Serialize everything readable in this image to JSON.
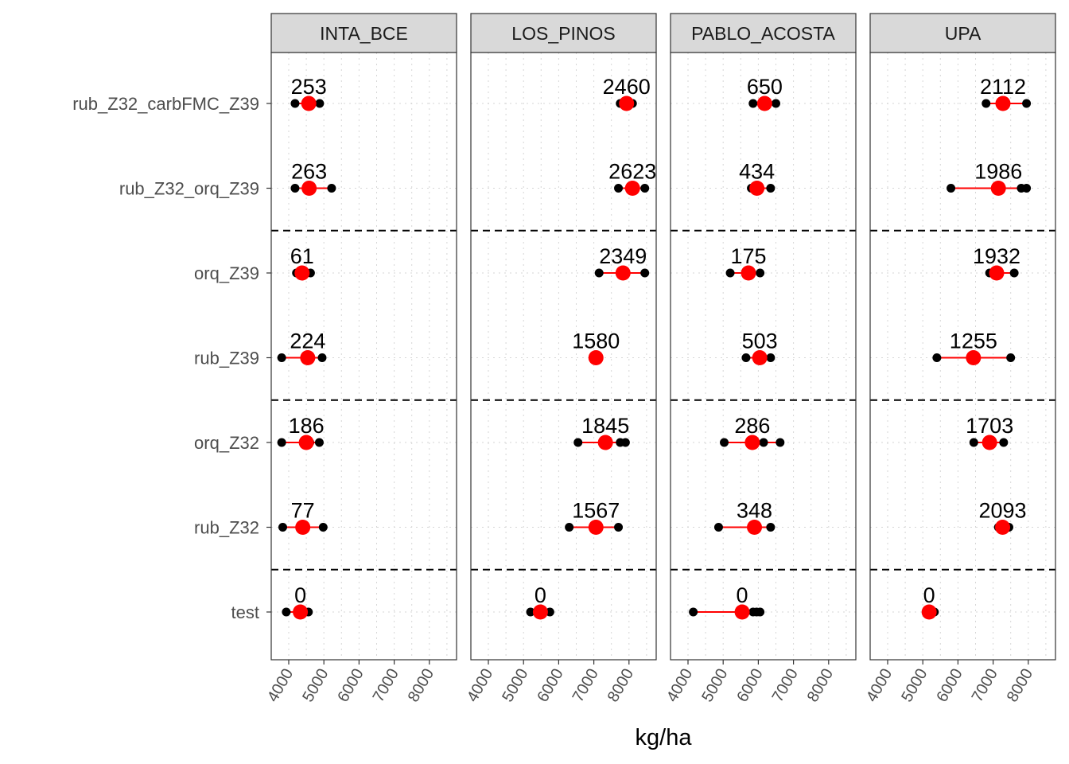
{
  "chart_data": {
    "type": "scatter",
    "xlabel": "kg/ha",
    "ylabel": "",
    "xlim": [
      3650,
      8800
    ],
    "x_ticks": [
      4000,
      5000,
      6000,
      7000,
      8000
    ],
    "x_tick_labels": [
      "4000",
      "5000",
      "6000",
      "7000",
      "8000"
    ],
    "categories": [
      "rub_Z32_carbFMC_Z39",
      "rub_Z32_orq_Z39",
      "orq_Z39",
      "rub_Z39",
      "orq_Z32",
      "rub_Z32",
      "test"
    ],
    "group_separators_after": [
      "rub_Z32_orq_Z39",
      "rub_Z39",
      "rub_Z32"
    ],
    "grid": "dotted",
    "colors": {
      "point": "#000000",
      "mean": "#ff0000",
      "range_line": "#ff0000",
      "strip_bg": "#d9d9d9"
    },
    "panels": [
      {
        "name": "INTA_BCE",
        "rows": [
          {
            "category": "rub_Z32_carbFMC_Z39",
            "label": "253",
            "mean": 4570,
            "points": [
              4180,
              4600,
              4880
            ]
          },
          {
            "category": "rub_Z32_orq_Z39",
            "label": "263",
            "mean": 4580,
            "points": [
              4180,
              4650,
              5220
            ]
          },
          {
            "category": "orq_Z39",
            "label": "61",
            "mean": 4380,
            "points": [
              4220,
              4330,
              4620
            ]
          },
          {
            "category": "rub_Z39",
            "label": "224",
            "mean": 4540,
            "points": [
              3800,
              4560,
              4950
            ]
          },
          {
            "category": "orq_Z32",
            "label": "186",
            "mean": 4500,
            "points": [
              3800,
              4600,
              4870
            ]
          },
          {
            "category": "rub_Z32",
            "label": "77",
            "mean": 4400,
            "points": [
              3830,
              4380,
              4980
            ]
          },
          {
            "category": "test",
            "label": "0",
            "mean": 4330,
            "points": [
              3930,
              4330,
              4560
            ]
          }
        ]
      },
      {
        "name": "LOS_PINOS",
        "rows": [
          {
            "category": "rub_Z32_carbFMC_Z39",
            "label": "2460",
            "mean": 7930,
            "points": [
              7750,
              7950,
              8100
            ]
          },
          {
            "category": "rub_Z32_orq_Z39",
            "label": "2623",
            "mean": 8100,
            "points": [
              7700,
              8150,
              8450
            ]
          },
          {
            "category": "orq_Z39",
            "label": "2349",
            "mean": 7830,
            "points": [
              7150,
              7900,
              8450
            ]
          },
          {
            "category": "rub_Z39",
            "label": "1580",
            "mean": 7060,
            "points": [
              7000,
              7060,
              7110
            ]
          },
          {
            "category": "orq_Z32",
            "label": "1845",
            "mean": 7330,
            "points": [
              6550,
              7750,
              7900
            ]
          },
          {
            "category": "rub_Z32",
            "label": "1567",
            "mean": 7060,
            "points": [
              6300,
              7060,
              7700
            ]
          },
          {
            "category": "test",
            "label": "0",
            "mean": 5480,
            "points": [
              5200,
              5480,
              5750
            ]
          }
        ]
      },
      {
        "name": "PABLO_ACOSTA",
        "rows": [
          {
            "category": "rub_Z32_carbFMC_Z39",
            "label": "650",
            "mean": 6180,
            "points": [
              5850,
              6200,
              6500
            ]
          },
          {
            "category": "rub_Z32_orq_Z39",
            "label": "434",
            "mean": 5960,
            "points": [
              5800,
              6000,
              6350
            ]
          },
          {
            "category": "orq_Z39",
            "label": "175",
            "mean": 5720,
            "points": [
              5200,
              5700,
              6050
            ]
          },
          {
            "category": "rub_Z39",
            "label": "503",
            "mean": 6040,
            "points": [
              5650,
              6050,
              6350
            ]
          },
          {
            "category": "orq_Z32",
            "label": "286",
            "mean": 5830,
            "points": [
              5030,
              5850,
              6150,
              6620
            ]
          },
          {
            "category": "rub_Z32",
            "label": "348",
            "mean": 5890,
            "points": [
              4870,
              5900,
              6350
            ]
          },
          {
            "category": "test",
            "label": "0",
            "mean": 5540,
            "points": [
              4150,
              5850,
              5950,
              6050
            ]
          }
        ]
      },
      {
        "name": "UPA",
        "rows": [
          {
            "category": "rub_Z32_carbFMC_Z39",
            "label": "2112",
            "mean": 7280,
            "points": [
              6800,
              7300,
              7950
            ]
          },
          {
            "category": "rub_Z32_orq_Z39",
            "label": "1986",
            "mean": 7150,
            "points": [
              5800,
              7150,
              7800,
              7950
            ]
          },
          {
            "category": "orq_Z39",
            "label": "1932",
            "mean": 7100,
            "points": [
              6900,
              7100,
              7600
            ]
          },
          {
            "category": "rub_Z39",
            "label": "1255",
            "mean": 6440,
            "points": [
              5400,
              6440,
              7500
            ]
          },
          {
            "category": "orq_Z32",
            "label": "1703",
            "mean": 6900,
            "points": [
              6450,
              6900,
              7300
            ]
          },
          {
            "category": "rub_Z32",
            "label": "2093",
            "mean": 7270,
            "points": [
              7150,
              7300,
              7450
            ]
          },
          {
            "category": "test",
            "label": "0",
            "mean": 5180,
            "points": [
              5100,
              5180,
              5330
            ]
          }
        ]
      }
    ]
  }
}
